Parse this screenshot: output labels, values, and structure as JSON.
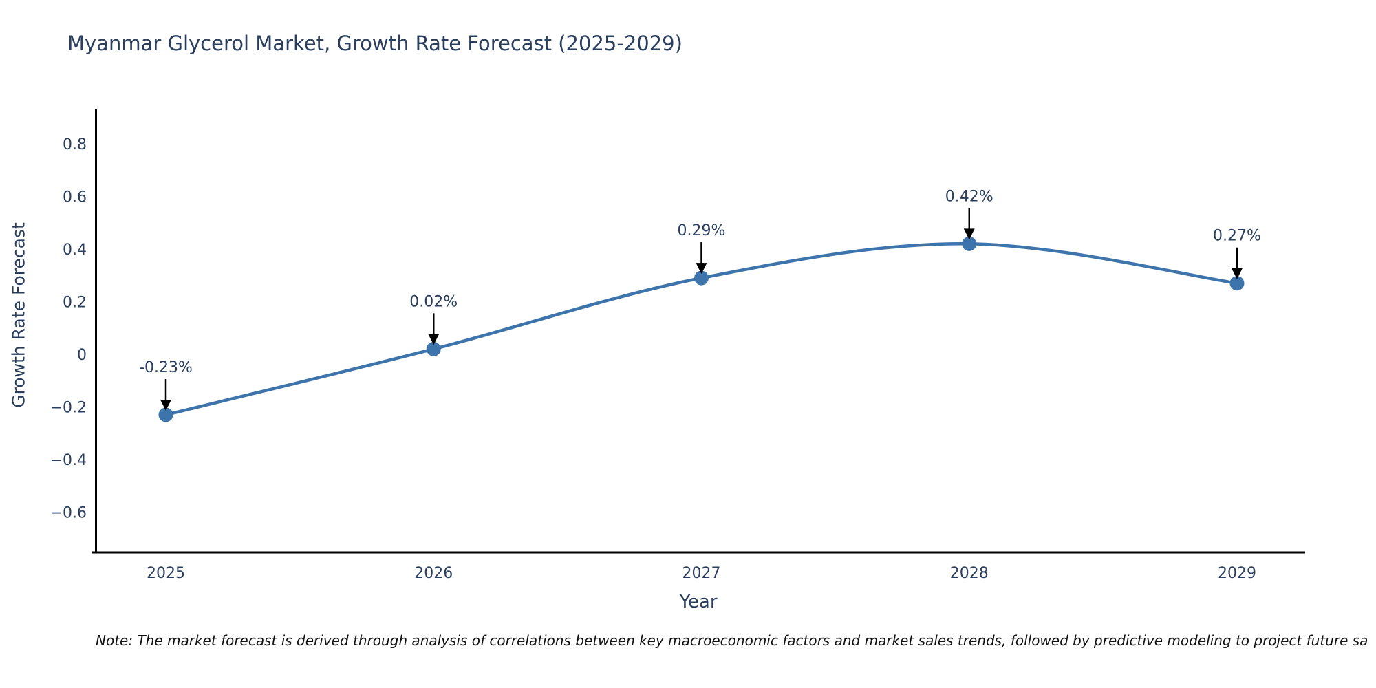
{
  "title": "Myanmar Glycerol Market, Growth Rate Forecast (2025-2029)",
  "note": "Note: The market forecast is derived through analysis of correlations between key macroeconomic factors and market sales trends, followed by predictive modeling to project future sa",
  "colors": {
    "line": "#3d74ab",
    "marker": "#3d74ab",
    "axis": "#000000",
    "text": "#2a3f5f",
    "annotation_arrow": "#000000",
    "background": "#ffffff"
  },
  "chart_data": {
    "type": "line",
    "title": "Myanmar Glycerol Market, Growth Rate Forecast (2025-2029)",
    "xlabel": "Year",
    "ylabel": "Growth Rate Forecast",
    "x": [
      "2025",
      "2026",
      "2027",
      "2028",
      "2029"
    ],
    "series": [
      {
        "name": "Growth Rate Forecast",
        "values": [
          -0.23,
          0.02,
          0.29,
          0.42,
          0.27
        ],
        "point_labels": [
          "-0.23%",
          "0.02%",
          "0.29%",
          "0.42%",
          "0.27%"
        ]
      }
    ],
    "yticks": [
      0.8,
      0.6,
      0.4,
      0.2,
      0,
      -0.2,
      -0.4,
      -0.6
    ],
    "ytick_labels": [
      "0.8",
      "0.6",
      "0.4",
      "0.2",
      "0",
      "−0.2",
      "−0.4",
      "−0.6"
    ],
    "ylim": [
      -0.76,
      0.93
    ],
    "grid": false,
    "legend": "none",
    "annotation_style": "black down-arrows from value labels to each data point"
  }
}
